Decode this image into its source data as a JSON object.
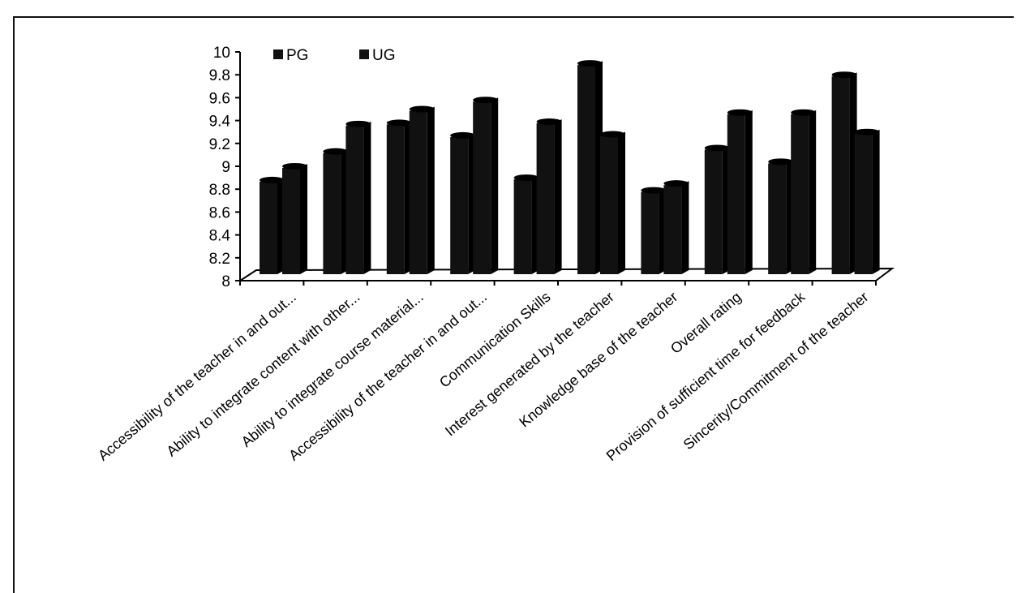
{
  "chart_data": {
    "type": "bar",
    "categories": [
      "Accessibility of the teacher in and out...",
      "Ability to integrate content with other...",
      "Ability to integrate course material...",
      "Accessibility of the teacher in and out...",
      "Communication Skills",
      "Interest generated by the teacher",
      "Knowledge base of the teacher",
      "Overall rating",
      "Provision of sufficient time for feedback",
      "Sincerity/Commitment of the teacher"
    ],
    "series": [
      {
        "name": "PG",
        "values": [
          8.88,
          9.13,
          9.38,
          9.27,
          8.9,
          9.9,
          8.79,
          9.16,
          9.04,
          9.8
        ]
      },
      {
        "name": "UG",
        "values": [
          9.0,
          9.37,
          9.5,
          9.58,
          9.39,
          9.28,
          8.85,
          9.47,
          9.47,
          9.3
        ]
      }
    ],
    "title": "",
    "xlabel": "",
    "ylabel": "",
    "ylim": [
      8,
      10
    ],
    "yticks": [
      "8",
      "8.2",
      "8.4",
      "8.6",
      "8.8",
      "9",
      "9.2",
      "9.4",
      "9.6",
      "9.8",
      "10"
    ],
    "grid": false,
    "legend_position": "top-left",
    "colors": {
      "PG": "#111111",
      "UG": "#111111"
    }
  }
}
